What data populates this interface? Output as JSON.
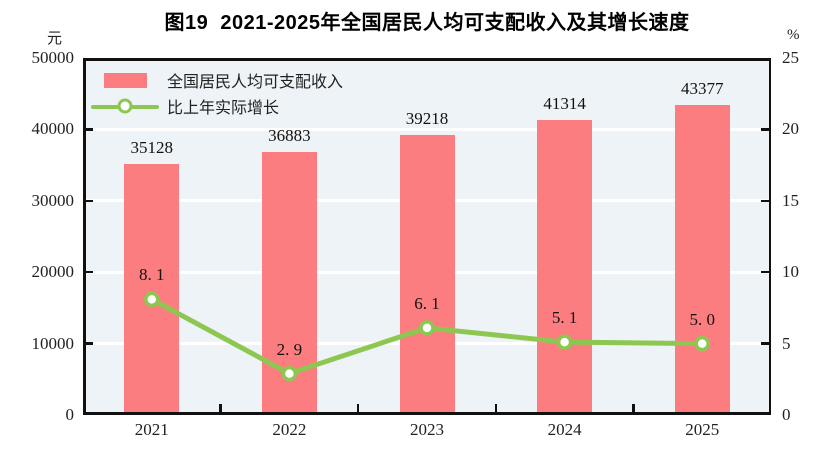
{
  "title": "图19  2021-2025年全国居民人均可支配收入及其增长速度",
  "legend": [
    {
      "label": "全国居民人均可支配收入",
      "type": "bar"
    },
    {
      "label": "比上年实际增长",
      "type": "line"
    }
  ],
  "chart_data": {
    "type": "bar+line",
    "categories": [
      "2021",
      "2022",
      "2023",
      "2024",
      "2025"
    ],
    "series": [
      {
        "name": "全国居民人均可支配收入",
        "type": "bar",
        "axis": "left",
        "values": [
          35128,
          36883,
          39218,
          41314,
          43377
        ],
        "labels": [
          "35128",
          "36883",
          "39218",
          "41314",
          "43377"
        ],
        "color": "#fb7d80"
      },
      {
        "name": "比上年实际增长",
        "type": "line",
        "axis": "right",
        "values": [
          8.1,
          2.9,
          6.1,
          5.1,
          5.0
        ],
        "labels": [
          "8. 1",
          "2. 9",
          "6. 1",
          "5. 1",
          "5. 0"
        ],
        "color": "#8dc751",
        "marker": "circle",
        "marker_fill": "#ffffff"
      }
    ],
    "left_axis": {
      "unit": "元",
      "min": 0,
      "max": 50000,
      "step": 10000,
      "ticks": [
        "0",
        "10000",
        "20000",
        "30000",
        "40000",
        "50000"
      ]
    },
    "right_axis": {
      "unit": "%",
      "min": 0,
      "max": 25,
      "step": 5,
      "ticks": [
        "0",
        "5",
        "10",
        "15",
        "20",
        "25"
      ]
    },
    "plot_background": "#edf3f7",
    "gridline_color": "#ffffff",
    "axis_color": "#111111",
    "grid": true,
    "legend_position": "top-left-inside"
  }
}
